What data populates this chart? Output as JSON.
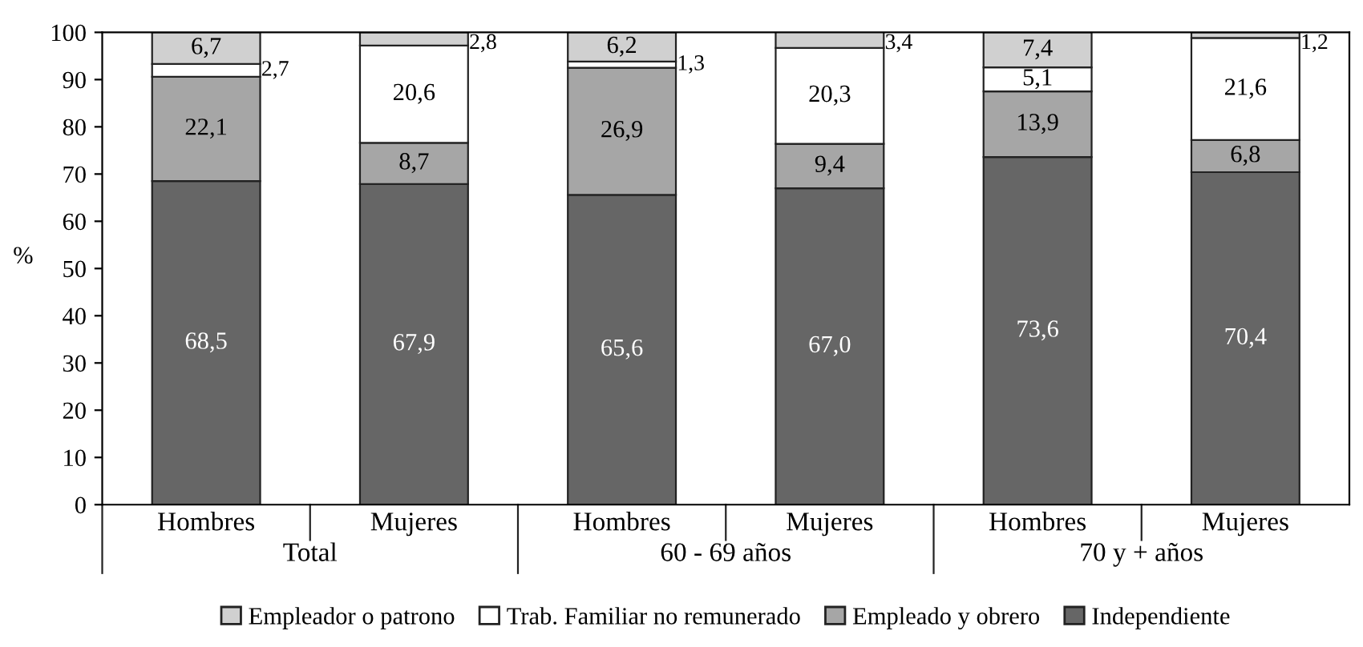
{
  "chart_data": {
    "type": "bar",
    "stacked": true,
    "ylabel": "%",
    "categories": [
      "Hombres",
      "Mujeres",
      "Hombres",
      "Mujeres",
      "Hombres",
      "Mujeres"
    ],
    "annotations": [
      "Total",
      "60 - 69 años",
      "70 y + años"
    ],
    "series": [
      {
        "name": "Independiente",
        "color": "#666666",
        "values": [
          68.5,
          67.9,
          65.6,
          67.0,
          73.6,
          70.4
        ],
        "value_labels": [
          "68,5",
          "67,9",
          "65,6",
          "67,0",
          "73,6",
          "70,4"
        ]
      },
      {
        "name": "Empleado y obrero",
        "color": "#a6a6a6",
        "values": [
          22.1,
          8.7,
          26.9,
          9.4,
          13.9,
          6.8
        ],
        "value_labels": [
          "22,1",
          "8,7",
          "26,9",
          "9,4",
          "13,9",
          "6,8"
        ]
      },
      {
        "name": "Trab. Familiar no remunerado",
        "color": "#ffffff",
        "values": [
          2.7,
          20.6,
          1.3,
          20.3,
          5.1,
          21.6
        ],
        "value_labels": [
          "2,7",
          "20,6",
          "1,3",
          "20,3",
          "5,1",
          "21,6"
        ]
      },
      {
        "name": "Empleador o patrono",
        "color": "#d0d0d0",
        "values": [
          6.7,
          2.8,
          6.2,
          3.4,
          7.4,
          1.2
        ],
        "value_labels": [
          "6,7",
          "2,8",
          "6,2",
          "3,4",
          "7,4",
          "1,2"
        ]
      }
    ],
    "ylim": [
      0,
      100
    ],
    "yticks": [
      0,
      10,
      20,
      30,
      40,
      50,
      60,
      70,
      80,
      90,
      100
    ],
    "grid": false,
    "legend": "bottom"
  }
}
